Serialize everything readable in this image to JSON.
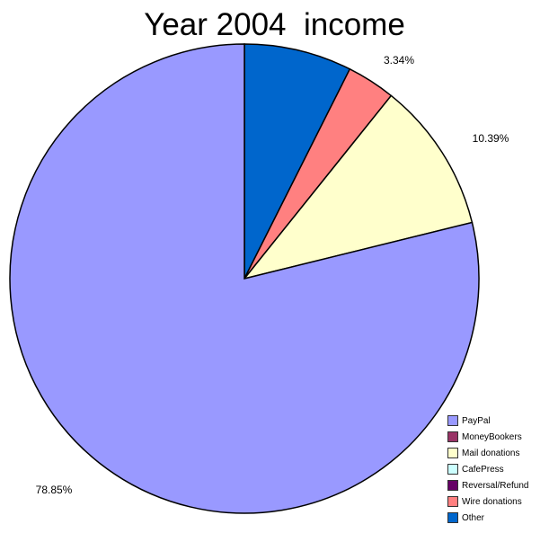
{
  "chart_data": {
    "type": "pie",
    "title": "Year 2004  income",
    "categories": [
      "PayPal",
      "MoneyBookers",
      "Mail donations",
      "CafePress",
      "Reversal/Refund",
      "Wire donations",
      "Other"
    ],
    "values": [
      78.85,
      0,
      10.39,
      0,
      0,
      3.34,
      7.42
    ],
    "colors": [
      "#9999ff",
      "#993366",
      "#ffffcc",
      "#ccffff",
      "#660066",
      "#ff8080",
      "#0066cc"
    ],
    "data_labels": [
      "78.85%",
      "",
      "10.39%",
      "",
      "",
      "3.34%",
      ""
    ],
    "legend_position": "bottom-right",
    "start_angle_deg": 0,
    "direction": "counterclockwise"
  }
}
